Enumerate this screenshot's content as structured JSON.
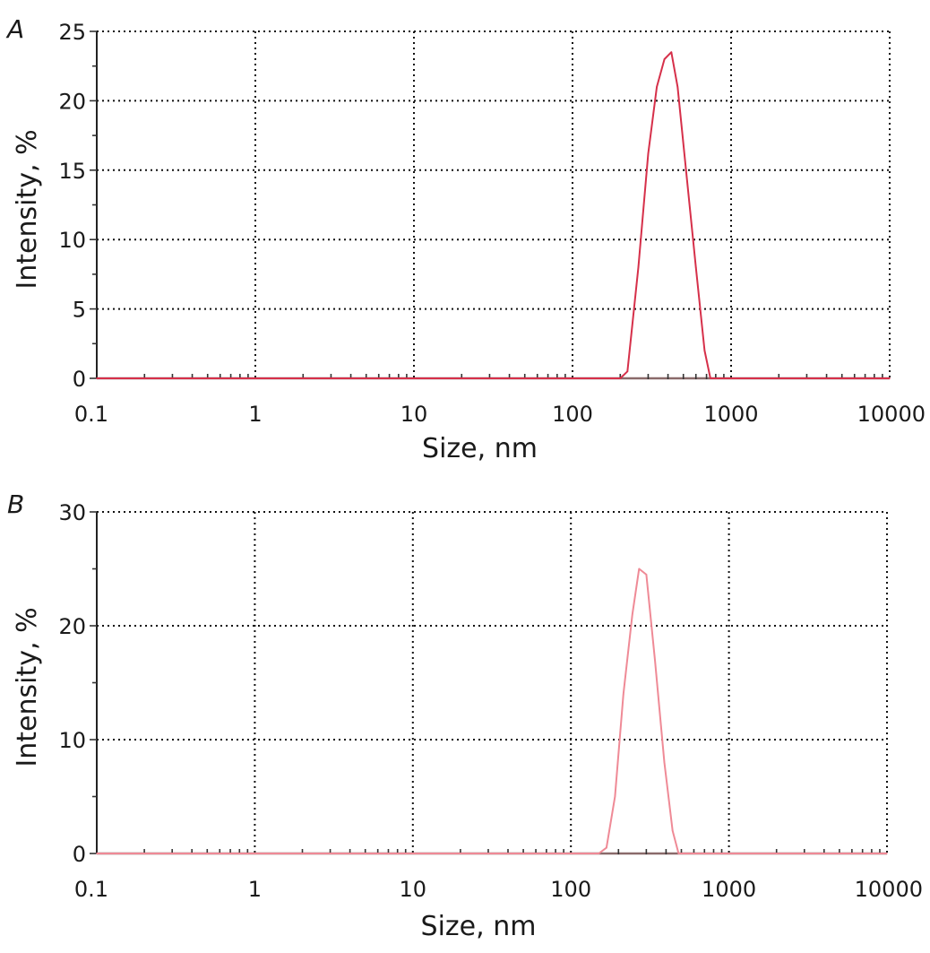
{
  "chart_data": [
    {
      "type": "line",
      "panel_label": "A",
      "xlabel": "Size, nm",
      "ylabel": "Intensity, %",
      "x_scale": "log",
      "xlim": [
        0.1,
        10000
      ],
      "ylim": [
        0,
        25
      ],
      "x_ticks": [
        0.1,
        1,
        10,
        100,
        1000,
        10000
      ],
      "x_tick_labels": [
        "0.1",
        "1",
        "10",
        "100",
        "1000",
        "10000"
      ],
      "y_ticks": [
        0,
        5,
        10,
        15,
        20,
        25
      ],
      "y_tick_labels": [
        "0",
        "5",
        "10",
        "15",
        "20",
        "25"
      ],
      "grid": true,
      "series": [
        {
          "color": "#d6304a",
          "x": [
            0.1,
            200,
            222,
            260,
            300,
            340,
            380,
            420,
            460,
            520,
            600,
            680,
            740,
            10000
          ],
          "y": [
            0,
            0,
            0.5,
            8,
            16.2,
            21,
            23,
            23.5,
            21,
            15,
            8,
            2,
            0,
            0
          ]
        }
      ]
    },
    {
      "type": "line",
      "panel_label": "B",
      "xlabel": "Size, nm",
      "ylabel": "Intensity, %",
      "x_scale": "log",
      "xlim": [
        0.1,
        10000
      ],
      "ylim": [
        0,
        30
      ],
      "x_ticks": [
        0.1,
        1,
        10,
        100,
        1000,
        10000
      ],
      "x_tick_labels": [
        "0.1",
        "1",
        "10",
        "100",
        "1000",
        "10000"
      ],
      "y_ticks": [
        0,
        10,
        20,
        30
      ],
      "y_tick_labels": [
        "0",
        "10",
        "20",
        "30"
      ],
      "grid": true,
      "series": [
        {
          "color": "#ef8a96",
          "x": [
            0.1,
            150,
            168,
            190,
            215,
            245,
            270,
            300,
            340,
            390,
            440,
            480,
            10000
          ],
          "y": [
            0,
            0,
            0.5,
            5,
            14,
            21,
            25,
            24.5,
            17,
            8,
            2,
            0,
            0
          ]
        }
      ]
    }
  ]
}
